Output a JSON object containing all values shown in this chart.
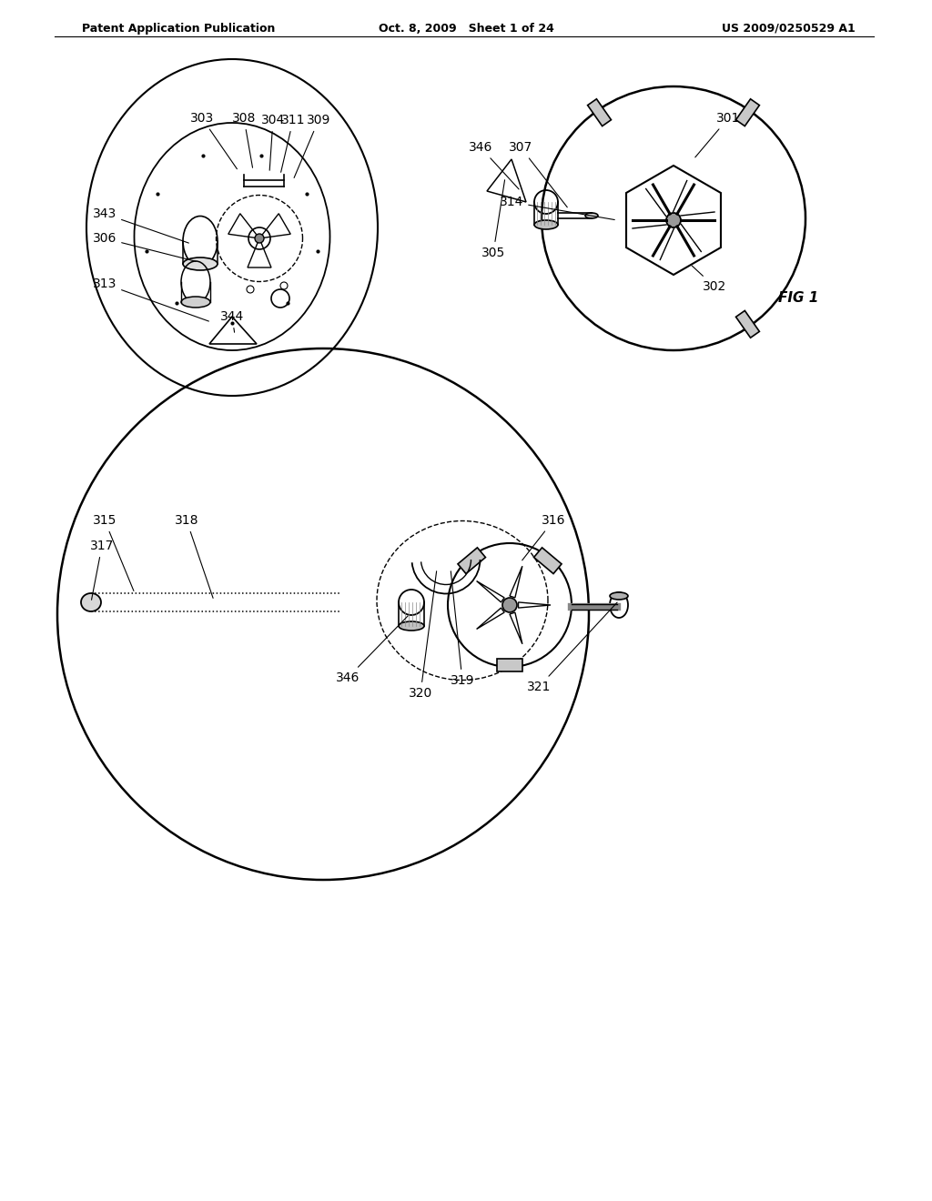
{
  "bg_color": "#ffffff",
  "text_color": "#000000",
  "line_color": "#000000",
  "header_left": "Patent Application Publication",
  "header_center": "Oct. 8, 2009   Sheet 1 of 24",
  "header_right": "US 2009/0250529 A1",
  "fig_label": "FIG 1"
}
